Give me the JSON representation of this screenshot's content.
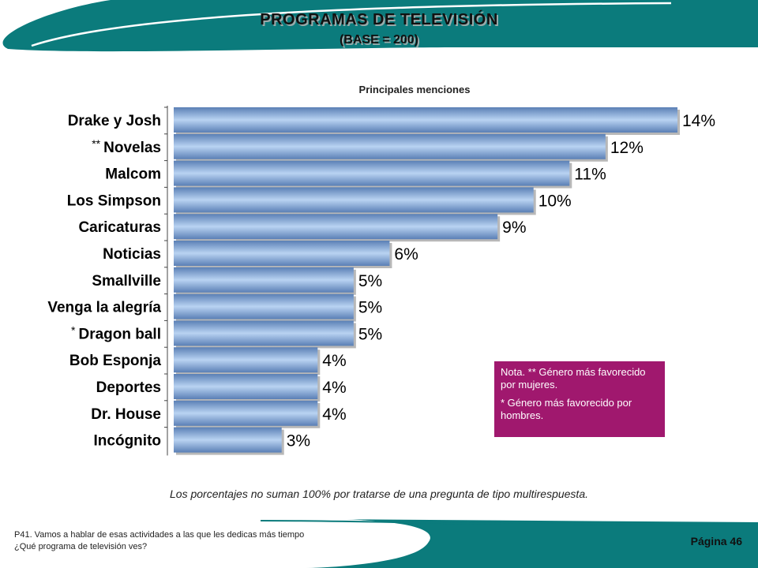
{
  "title": "PROGRAMAS DE TELEVISIÓN",
  "subtitle": "(BASE = 200)",
  "chart_heading": "Principales menciones",
  "chart_data": {
    "type": "bar",
    "orientation": "horizontal",
    "title": "Principales menciones",
    "categories": [
      "Drake y Josh",
      "Novelas",
      "Malcom",
      "Los Simpson",
      "Caricaturas",
      "Noticias",
      "Smallville",
      "Venga la alegría",
      "Dragon ball",
      "Bob Esponja",
      "Deportes",
      "Dr. House",
      "Incógnito"
    ],
    "values": [
      14,
      12,
      11,
      10,
      9,
      6,
      5,
      5,
      5,
      4,
      4,
      4,
      3
    ],
    "value_labels": [
      "14%",
      "12%",
      "11%",
      "10%",
      "9%",
      "6%",
      "5%",
      "5%",
      "5%",
      "4%",
      "4%",
      "4%",
      "3%"
    ],
    "markers": [
      "",
      "**",
      "",
      "",
      "",
      "",
      "",
      "",
      "*",
      "",
      "",
      "",
      ""
    ],
    "unit": "%",
    "xlim": [
      0,
      14
    ],
    "grid": false,
    "bar_color": "#6f93c4"
  },
  "note": {
    "line1": "Nota. ** Género más favorecido por mujeres.",
    "line2": "* Género más favorecido por hombres."
  },
  "footnote": "Los porcentajes no suman 100% por tratarse de una pregunta de tipo multirespuesta.",
  "question": {
    "line1": "P41. Vamos a hablar de esas actividades a las que les dedicas más tiempo",
    "line2": "¿Qué programa de televisión ves?"
  },
  "page_number": "Página 46",
  "colors": {
    "teal": "#0b7b7c",
    "note_bg": "#a0186e"
  }
}
